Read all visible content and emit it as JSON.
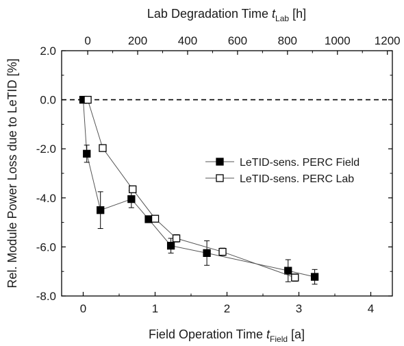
{
  "chart_data": {
    "type": "scatter",
    "xlabel": {
      "pre": "Field Operation Time ",
      "var": "t",
      "sub": "Field",
      "post": " [a]"
    },
    "x2label": {
      "pre": "Lab Degradation Time ",
      "var": "t",
      "sub": "Lab",
      "post": " [h]"
    },
    "ylabel": "Rel. Module Power Loss due to LeTID [%]",
    "xlim": [
      -0.3,
      4.3
    ],
    "x2lim": [
      -104.5,
      1220
    ],
    "ylim": [
      -8.0,
      2.0
    ],
    "xticks": [
      0,
      1,
      2,
      3,
      4
    ],
    "x2ticks": [
      0,
      200,
      400,
      600,
      800,
      1000,
      1200
    ],
    "yticks": [
      2.0,
      0.0,
      -2.0,
      -4.0,
      -6.0,
      -8.0
    ],
    "xtick_labels": [
      "0",
      "1",
      "2",
      "3",
      "4"
    ],
    "x2tick_labels": [
      "0",
      "200",
      "400",
      "600",
      "800",
      "1000",
      "1200"
    ],
    "ytick_labels": [
      "2.0",
      "0.0",
      "-2.0",
      "-4.0",
      "-6.0",
      "-8.0"
    ],
    "reference_line": {
      "y": 0.0,
      "style": "dashed"
    },
    "legend_position": "right",
    "series": [
      {
        "name": "LeTID-sens. PERC Field",
        "marker": "filled-square",
        "axis": "bottom",
        "color": "#000000",
        "points": [
          {
            "x": 0.0,
            "y": 0.0
          },
          {
            "x": 0.05,
            "y": -2.2,
            "err": 0.35
          },
          {
            "x": 0.24,
            "y": -4.5,
            "err": 0.75
          },
          {
            "x": 0.67,
            "y": -4.05,
            "err": 0.35
          },
          {
            "x": 0.91,
            "y": -4.87,
            "err": 0.1
          },
          {
            "x": 1.22,
            "y": -5.95,
            "err": 0.3
          },
          {
            "x": 1.72,
            "y": -6.25,
            "err": 0.5
          },
          {
            "x": 2.85,
            "y": -6.97,
            "err": 0.45
          },
          {
            "x": 3.22,
            "y": -7.22,
            "err": 0.3
          }
        ]
      },
      {
        "name": "LeTID-sens. PERC Lab",
        "marker": "open-square",
        "axis": "top",
        "color": "#000000",
        "points": [
          {
            "x": 0,
            "y": 0.0
          },
          {
            "x": 60,
            "y": -1.97,
            "err": 0.12
          },
          {
            "x": 180,
            "y": -3.65,
            "err": 0.1
          },
          {
            "x": 270,
            "y": -4.85,
            "err": 0.1
          },
          {
            "x": 355,
            "y": -5.65,
            "err": 0.15
          },
          {
            "x": 540,
            "y": -6.2,
            "err": 0.15
          },
          {
            "x": 830,
            "y": -7.25,
            "err": 0.15
          }
        ]
      }
    ]
  }
}
